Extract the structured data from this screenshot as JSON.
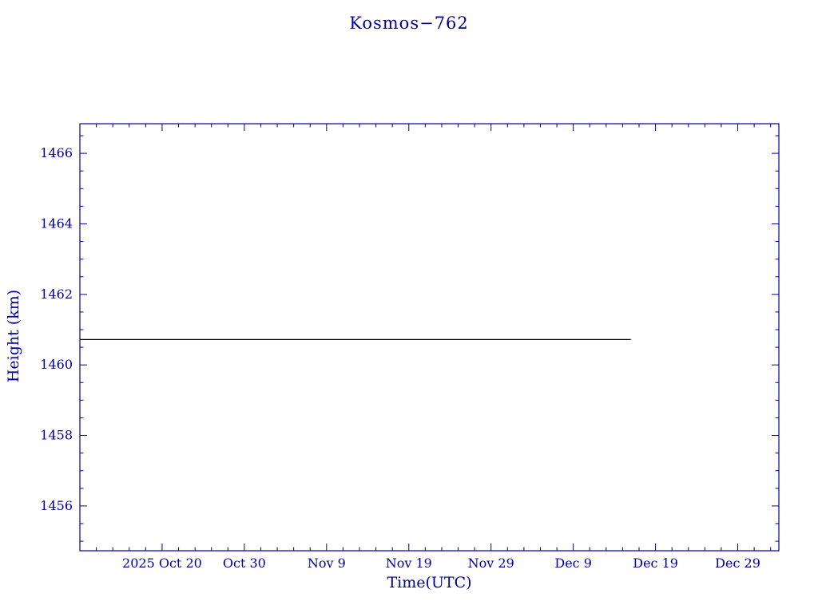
{
  "chart_data": {
    "type": "line",
    "title": "Kosmos−762",
    "xlabel": "Time(UTC)",
    "ylabel": "Height (km)",
    "axis_color": "#000099",
    "line_color": "#000000",
    "background": "#ffffff",
    "grid": false,
    "legend": "none",
    "x_axis_note": "days relative to plot left edge (2025 Oct 10); ticks every 10 days",
    "xlim": [
      0,
      85
    ],
    "ylim": [
      1454.73,
      1466.84
    ],
    "x_ticks": [
      {
        "day": 10,
        "label": "2025 Oct 20"
      },
      {
        "day": 20,
        "label": "Oct 30"
      },
      {
        "day": 30,
        "label": "Nov 9"
      },
      {
        "day": 40,
        "label": "Nov 19"
      },
      {
        "day": 50,
        "label": "Nov 29"
      },
      {
        "day": 60,
        "label": "Dec 9"
      },
      {
        "day": 70,
        "label": "Dec 19"
      },
      {
        "day": 80,
        "label": "Dec 29"
      }
    ],
    "x_minor_step_days": 2,
    "y_ticks": [
      1456,
      1458,
      1460,
      1462,
      1464,
      1466
    ],
    "y_minor_step": 0.5,
    "series": [
      {
        "name": "height-km",
        "color": "#000000",
        "points": [
          [
            0,
            1460.72
          ],
          [
            67,
            1460.72
          ]
        ]
      }
    ]
  }
}
